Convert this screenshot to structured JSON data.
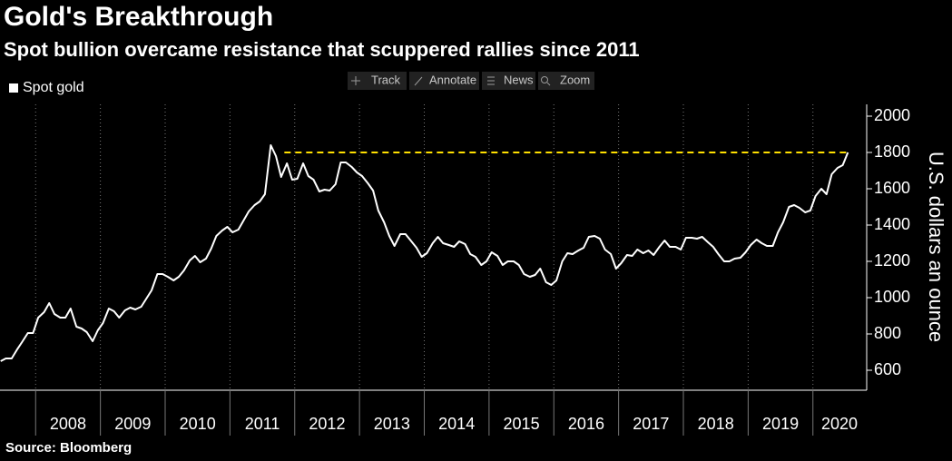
{
  "chart_data": {
    "type": "line",
    "title": "Gold's Breakthrough",
    "subtitle": "Spot bullion overcame resistance that scuppered rallies since 2011",
    "source": "Source: Bloomberg",
    "y_label": "U.S. dollars an ounce",
    "xlim": [
      2007.45,
      2020.83
    ],
    "xticks": [
      2008,
      2009,
      2010,
      2011,
      2012,
      2013,
      2014,
      2015,
      2016,
      2017,
      2018,
      2019,
      2020
    ],
    "ylim": [
      490,
      2065
    ],
    "yticks": [
      600,
      800,
      1000,
      1200,
      1400,
      1600,
      1800,
      2000
    ],
    "grid": true,
    "legend": "top-left",
    "reference_line": {
      "value": 1800,
      "from": 2011.84,
      "to": 2020.55,
      "color": "#ffe000"
    },
    "series": [
      {
        "name": "Spot gold",
        "color": "#ffffff",
        "x": [
          2007.46,
          2007.54,
          2007.63,
          2007.71,
          2007.79,
          2007.88,
          2007.96,
          2008.04,
          2008.13,
          2008.21,
          2008.29,
          2008.38,
          2008.46,
          2008.54,
          2008.63,
          2008.71,
          2008.79,
          2008.88,
          2008.96,
          2009.04,
          2009.13,
          2009.21,
          2009.29,
          2009.38,
          2009.46,
          2009.54,
          2009.63,
          2009.71,
          2009.79,
          2009.88,
          2009.96,
          2010.04,
          2010.13,
          2010.21,
          2010.29,
          2010.38,
          2010.46,
          2010.54,
          2010.63,
          2010.71,
          2010.79,
          2010.88,
          2010.96,
          2011.04,
          2011.13,
          2011.21,
          2011.29,
          2011.38,
          2011.46,
          2011.54,
          2011.63,
          2011.71,
          2011.79,
          2011.88,
          2011.96,
          2012.04,
          2012.13,
          2012.21,
          2012.29,
          2012.38,
          2012.46,
          2012.54,
          2012.63,
          2012.71,
          2012.79,
          2012.88,
          2012.96,
          2013.04,
          2013.13,
          2013.21,
          2013.29,
          2013.38,
          2013.46,
          2013.54,
          2013.63,
          2013.71,
          2013.79,
          2013.88,
          2013.96,
          2014.04,
          2014.13,
          2014.21,
          2014.29,
          2014.38,
          2014.46,
          2014.54,
          2014.63,
          2014.71,
          2014.79,
          2014.88,
          2014.96,
          2015.04,
          2015.13,
          2015.21,
          2015.29,
          2015.38,
          2015.46,
          2015.54,
          2015.63,
          2015.71,
          2015.79,
          2015.88,
          2015.96,
          2016.04,
          2016.13,
          2016.21,
          2016.29,
          2016.38,
          2016.46,
          2016.54,
          2016.63,
          2016.71,
          2016.79,
          2016.88,
          2016.96,
          2017.04,
          2017.13,
          2017.21,
          2017.29,
          2017.38,
          2017.46,
          2017.54,
          2017.63,
          2017.71,
          2017.79,
          2017.88,
          2017.96,
          2018.04,
          2018.13,
          2018.21,
          2018.29,
          2018.38,
          2018.46,
          2018.54,
          2018.63,
          2018.71,
          2018.79,
          2018.88,
          2018.96,
          2019.04,
          2019.13,
          2019.21,
          2019.29,
          2019.38,
          2019.46,
          2019.54,
          2019.63,
          2019.71,
          2019.79,
          2019.88,
          2019.96,
          2020.04,
          2020.13,
          2020.21,
          2020.29,
          2020.38,
          2020.46,
          2020.54
        ],
        "values": [
          650,
          665,
          665,
          712,
          755,
          805,
          805,
          890,
          920,
          970,
          910,
          890,
          890,
          940,
          840,
          830,
          810,
          760,
          820,
          860,
          940,
          925,
          890,
          930,
          945,
          935,
          950,
          995,
          1040,
          1130,
          1130,
          1115,
          1095,
          1115,
          1150,
          1205,
          1230,
          1195,
          1215,
          1270,
          1340,
          1370,
          1390,
          1360,
          1375,
          1425,
          1475,
          1510,
          1530,
          1570,
          1840,
          1780,
          1665,
          1740,
          1650,
          1655,
          1740,
          1670,
          1650,
          1585,
          1595,
          1590,
          1625,
          1745,
          1745,
          1720,
          1690,
          1670,
          1630,
          1590,
          1480,
          1415,
          1340,
          1285,
          1350,
          1350,
          1315,
          1275,
          1225,
          1245,
          1300,
          1335,
          1300,
          1290,
          1280,
          1310,
          1295,
          1240,
          1225,
          1180,
          1200,
          1250,
          1230,
          1180,
          1200,
          1200,
          1180,
          1130,
          1115,
          1125,
          1160,
          1085,
          1070,
          1095,
          1200,
          1245,
          1240,
          1260,
          1275,
          1335,
          1340,
          1325,
          1265,
          1240,
          1160,
          1190,
          1235,
          1230,
          1265,
          1245,
          1260,
          1235,
          1280,
          1315,
          1280,
          1280,
          1265,
          1330,
          1330,
          1325,
          1335,
          1305,
          1280,
          1240,
          1200,
          1200,
          1215,
          1220,
          1250,
          1290,
          1320,
          1300,
          1285,
          1285,
          1360,
          1415,
          1500,
          1510,
          1495,
          1470,
          1480,
          1560,
          1600,
          1570,
          1680,
          1715,
          1730,
          1800
        ]
      }
    ]
  },
  "toolbar": [
    "Track",
    "Annotate",
    "News",
    "Zoom"
  ]
}
